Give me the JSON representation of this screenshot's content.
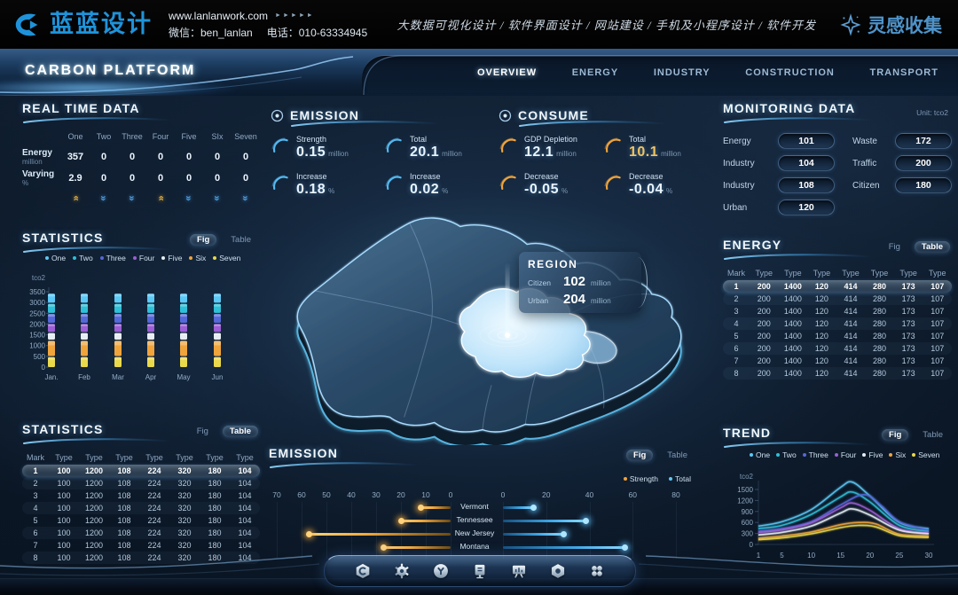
{
  "brand": {
    "logo_text": "蓝蓝设计",
    "url": "www.lanlanwork.com",
    "url_arrows": "►►►►►",
    "wechat_label": "微信：ben_lanlan",
    "phone_label": "电话：010-63334945",
    "services": "大数据可视化设计 / 软件界面设计 / 网站建设 / 手机及小程序设计 / 软件开发",
    "collect_label": "灵感收集"
  },
  "nav": {
    "title": "CARBON PLATFORM",
    "tabs": [
      {
        "label": "OVERVIEW",
        "active": true
      },
      {
        "label": "ENERGY",
        "active": false
      },
      {
        "label": "INDUSTRY",
        "active": false
      },
      {
        "label": "CONSTRUCTION",
        "active": false
      },
      {
        "label": "TRANSPORT",
        "active": false
      }
    ]
  },
  "real_time": {
    "title": "REAL TIME DATA",
    "columns": [
      "One",
      "Two",
      "Three",
      "Four",
      "Five",
      "SIx",
      "Seven"
    ],
    "rows": [
      {
        "label": "Energy",
        "unit": "million",
        "values": [
          "357",
          "0",
          "0",
          "0",
          "0",
          "0",
          "0"
        ]
      },
      {
        "label": "Varying",
        "unit": "%",
        "values": [
          "2.9",
          "0",
          "0",
          "0",
          "0",
          "0",
          "0"
        ]
      }
    ],
    "trends": [
      "up",
      "down",
      "down",
      "up",
      "down",
      "down",
      "down"
    ]
  },
  "emission_stats": {
    "title": "EMISSION",
    "theme": "#54b9f0",
    "items": [
      {
        "label": "Strength",
        "value": "0.15",
        "unit": "million"
      },
      {
        "label": "Total",
        "value": "20.1",
        "unit": "million"
      },
      {
        "label": "Increase",
        "value": "0.18",
        "unit": "%"
      },
      {
        "label": "Increase",
        "value": "0.02",
        "unit": "%"
      }
    ]
  },
  "consume_stats": {
    "title": "CONSUME",
    "theme": "#f0a43c",
    "items": [
      {
        "label": "GDP Depletion",
        "value": "12.1",
        "unit": "million"
      },
      {
        "label": "Total",
        "value": "10.1",
        "unit": "million",
        "gold": true
      },
      {
        "label": "Decrease",
        "value": "-0.05",
        "unit": "%"
      },
      {
        "label": "Decrease",
        "value": "-0.04",
        "unit": "%"
      }
    ]
  },
  "region": {
    "title": "REGION",
    "rows": [
      {
        "label": "Citizen",
        "value": "102",
        "unit": "million"
      },
      {
        "label": "Urban",
        "value": "204",
        "unit": "million"
      }
    ]
  },
  "monitoring": {
    "title": "MONITORING DATA",
    "unit": "Unit: tco2",
    "left": [
      {
        "label": "Energy",
        "value": "101"
      },
      {
        "label": "Industry",
        "value": "104"
      },
      {
        "label": "Industry",
        "value": "108"
      },
      {
        "label": "Urban",
        "value": "120"
      }
    ],
    "right": [
      {
        "label": "Waste",
        "value": "172"
      },
      {
        "label": "Traffic",
        "value": "200"
      },
      {
        "label": "Citizen",
        "value": "180"
      }
    ]
  },
  "legend_series": [
    {
      "label": "One",
      "color": "#5bc8f5"
    },
    {
      "label": "Two",
      "color": "#2ec0d8"
    },
    {
      "label": "Three",
      "color": "#5568d8"
    },
    {
      "label": "Four",
      "color": "#9c5fd6"
    },
    {
      "label": "Five",
      "color": "#e6edf4"
    },
    {
      "label": "Six",
      "color": "#f0a43c"
    },
    {
      "label": "Seven",
      "color": "#ead94a"
    }
  ],
  "statistics_fig": {
    "title": "STATISTICS",
    "toggle": {
      "fig": "Fig",
      "table": "Table",
      "active": "fig"
    },
    "chart": {
      "type": "bar",
      "stacked": true,
      "unit": "tco2",
      "categories": [
        "Jan.",
        "Feb",
        "Mar",
        "Apr",
        "May",
        "Jun"
      ],
      "yticks": [
        0,
        500,
        1000,
        1500,
        2000,
        2500,
        3000,
        3500
      ],
      "series": [
        {
          "name": "One",
          "color": "#5bc8f5",
          "value": 450
        },
        {
          "name": "Two",
          "color": "#2ec0d8",
          "value": 450
        },
        {
          "name": "Three",
          "color": "#5568d8",
          "value": 440
        },
        {
          "name": "Four",
          "color": "#9c5fd6",
          "value": 400
        },
        {
          "name": "Five",
          "color": "#e6edf4",
          "value": 330
        },
        {
          "name": "Six",
          "color": "#f0a43c",
          "value": 760
        },
        {
          "name": "Seven",
          "color": "#ead94a",
          "value": 500
        }
      ]
    }
  },
  "statistics_table": {
    "title": "STATISTICS",
    "toggle": {
      "fig": "Fig",
      "table": "Table",
      "active": "table"
    },
    "headers": [
      "Mark",
      "Type",
      "Type",
      "Type",
      "Type",
      "Type",
      "Type",
      "Type"
    ],
    "rows": [
      [
        "1",
        "100",
        "1200",
        "108",
        "224",
        "320",
        "180",
        "104"
      ],
      [
        "2",
        "100",
        "1200",
        "108",
        "224",
        "320",
        "180",
        "104"
      ],
      [
        "3",
        "100",
        "1200",
        "108",
        "224",
        "320",
        "180",
        "104"
      ],
      [
        "4",
        "100",
        "1200",
        "108",
        "224",
        "320",
        "180",
        "104"
      ],
      [
        "5",
        "100",
        "1200",
        "108",
        "224",
        "320",
        "180",
        "104"
      ],
      [
        "6",
        "100",
        "1200",
        "108",
        "224",
        "320",
        "180",
        "104"
      ],
      [
        "7",
        "100",
        "1200",
        "108",
        "224",
        "320",
        "180",
        "104"
      ],
      [
        "8",
        "100",
        "1200",
        "108",
        "224",
        "320",
        "180",
        "104"
      ]
    ]
  },
  "energy_table": {
    "title": "ENERGY",
    "toggle": {
      "fig": "Fig",
      "table": "Table",
      "active": "table"
    },
    "headers": [
      "Mark",
      "Type",
      "Type",
      "Type",
      "Type",
      "Type",
      "Type",
      "Type"
    ],
    "rows": [
      [
        "1",
        "200",
        "1400",
        "120",
        "414",
        "280",
        "173",
        "107"
      ],
      [
        "2",
        "200",
        "1400",
        "120",
        "414",
        "280",
        "173",
        "107"
      ],
      [
        "3",
        "200",
        "1400",
        "120",
        "414",
        "280",
        "173",
        "107"
      ],
      [
        "4",
        "200",
        "1400",
        "120",
        "414",
        "280",
        "173",
        "107"
      ],
      [
        "5",
        "200",
        "1400",
        "120",
        "414",
        "280",
        "173",
        "107"
      ],
      [
        "6",
        "200",
        "1400",
        "120",
        "414",
        "280",
        "173",
        "107"
      ],
      [
        "7",
        "200",
        "1400",
        "120",
        "414",
        "280",
        "173",
        "107"
      ],
      [
        "8",
        "200",
        "1400",
        "120",
        "414",
        "280",
        "173",
        "107"
      ]
    ]
  },
  "emission_chart": {
    "title": "EMISSION",
    "toggle": {
      "fig": "Fig",
      "table": "Table",
      "active": "fig"
    },
    "legend": [
      {
        "label": "Strength",
        "color": "#f0a43c"
      },
      {
        "label": "Total",
        "color": "#5bc8f5"
      }
    ],
    "left_axis": {
      "ticks": [
        70,
        60,
        50,
        40,
        30,
        20,
        10,
        0
      ]
    },
    "right_axis": {
      "ticks": [
        0,
        20,
        40,
        60,
        80
      ]
    },
    "chart": {
      "type": "bar",
      "orientation": "bidirectional",
      "rows": [
        {
          "label": "Vermont",
          "strength": 12,
          "total": 14
        },
        {
          "label": "Tennessee",
          "strength": 20,
          "total": 38
        },
        {
          "label": "New Jersey",
          "strength": 57,
          "total": 28
        },
        {
          "label": "Montana",
          "strength": 27,
          "total": 56
        }
      ]
    }
  },
  "trend": {
    "title": "TREND",
    "toggle": {
      "fig": "Fig",
      "table": "Table",
      "active": "fig"
    },
    "chart": {
      "type": "line",
      "unit": "tco2",
      "yticks": [
        0,
        300,
        600,
        900,
        1200,
        1500
      ],
      "xticks": [
        1,
        5,
        10,
        15,
        20,
        25,
        30
      ],
      "xlim": [
        1,
        30
      ],
      "ylim": [
        0,
        1500
      ],
      "series": [
        {
          "name": "One",
          "color": "#5bc8f5",
          "points": [
            [
              1,
              500
            ],
            [
              5,
              620
            ],
            [
              10,
              950
            ],
            [
              15,
              1560
            ],
            [
              17,
              1700
            ],
            [
              20,
              1320
            ],
            [
              25,
              600
            ],
            [
              30,
              430
            ]
          ]
        },
        {
          "name": "Two",
          "color": "#2ec0d8",
          "points": [
            [
              1,
              430
            ],
            [
              5,
              520
            ],
            [
              10,
              820
            ],
            [
              15,
              1300
            ],
            [
              17,
              1430
            ],
            [
              20,
              1160
            ],
            [
              25,
              520
            ],
            [
              30,
              360
            ]
          ]
        },
        {
          "name": "Three",
          "color": "#5568d8",
          "points": [
            [
              1,
              360
            ],
            [
              5,
              430
            ],
            [
              10,
              620
            ],
            [
              15,
              1080
            ],
            [
              19,
              1360
            ],
            [
              22,
              1050
            ],
            [
              25,
              620
            ],
            [
              30,
              390
            ]
          ]
        },
        {
          "name": "Four",
          "color": "#9c5fd6",
          "points": [
            [
              1,
              330
            ],
            [
              5,
              400
            ],
            [
              10,
              590
            ],
            [
              15,
              1000
            ],
            [
              17,
              1130
            ],
            [
              20,
              930
            ],
            [
              25,
              430
            ],
            [
              30,
              310
            ]
          ]
        },
        {
          "name": "Five",
          "color": "#e6edf4",
          "points": [
            [
              1,
              260
            ],
            [
              5,
              330
            ],
            [
              10,
              500
            ],
            [
              15,
              860
            ],
            [
              17,
              970
            ],
            [
              20,
              800
            ],
            [
              25,
              390
            ],
            [
              30,
              290
            ]
          ]
        },
        {
          "name": "Six",
          "color": "#f0a43c",
          "points": [
            [
              1,
              170
            ],
            [
              5,
              230
            ],
            [
              10,
              340
            ],
            [
              15,
              540
            ],
            [
              18,
              600
            ],
            [
              21,
              560
            ],
            [
              25,
              280
            ],
            [
              30,
              230
            ]
          ]
        },
        {
          "name": "Seven",
          "color": "#ead94a",
          "points": [
            [
              1,
              130
            ],
            [
              5,
              180
            ],
            [
              10,
              290
            ],
            [
              15,
              460
            ],
            [
              18,
              520
            ],
            [
              21,
              480
            ],
            [
              25,
              240
            ],
            [
              30,
              190
            ]
          ]
        }
      ]
    }
  },
  "dock": {
    "icons": [
      "home",
      "gear",
      "y-badge",
      "kiosk",
      "chart-board",
      "nut",
      "apps"
    ]
  }
}
